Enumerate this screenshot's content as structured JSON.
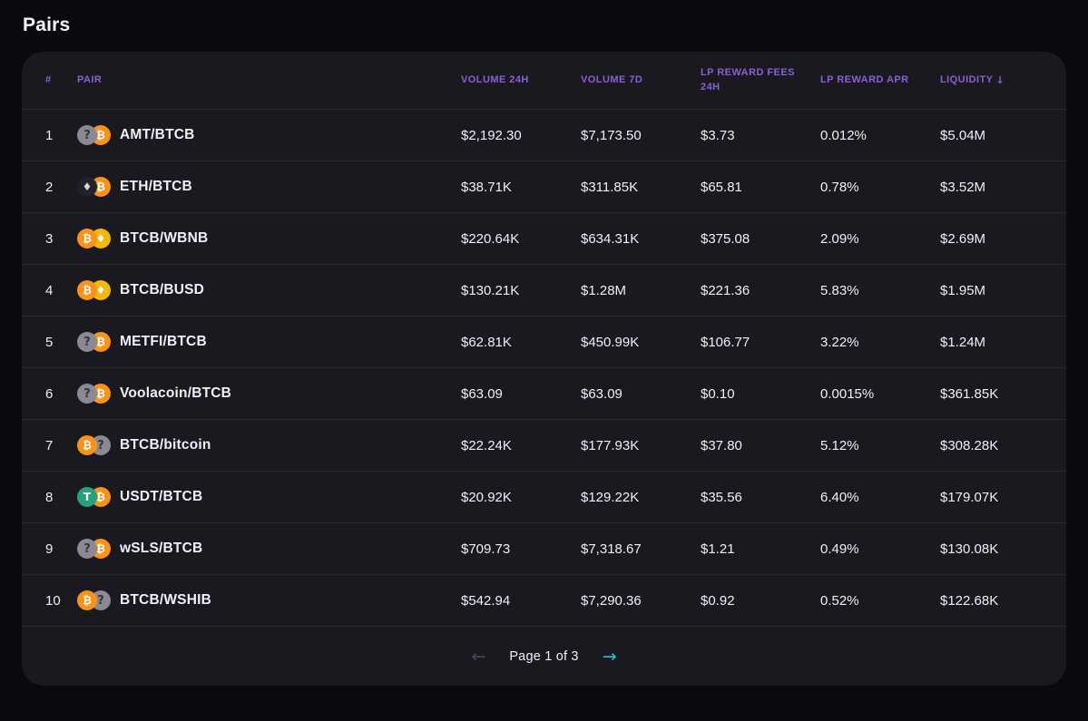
{
  "page": {
    "title": "Pairs"
  },
  "colors": {
    "background": "#0a090d",
    "card": "#1a191f",
    "header_text": "#8a5fd6",
    "row_text": "#f2eef8",
    "next_arrow": "#1fc7d4",
    "bitcoin": "#f7931a",
    "bnb": "#f0b90b",
    "usdt": "#26a17b"
  },
  "table": {
    "columns": {
      "rank": "#",
      "pair": "PAIR",
      "volume24h": "VOLUME 24H",
      "volume7d": "VOLUME 7D",
      "fees24h": "LP REWARD FEES 24H",
      "apr": "LP REWARD APR",
      "liquidity": "LIQUIDITY",
      "liquidity_sort_icon": "↓"
    },
    "rows": [
      {
        "rank": "1",
        "pair": "AMT/BTCB",
        "icons": [
          "question-icon",
          "bitcoin-icon"
        ],
        "volume24h": "$2,192.30",
        "volume7d": "$7,173.50",
        "fees24h": "$3.73",
        "apr": "0.012%",
        "liquidity": "$5.04M"
      },
      {
        "rank": "2",
        "pair": "ETH/BTCB",
        "icons": [
          "eth-icon",
          "bitcoin-icon"
        ],
        "volume24h": "$38.71K",
        "volume7d": "$311.85K",
        "fees24h": "$65.81",
        "apr": "0.78%",
        "liquidity": "$3.52M"
      },
      {
        "rank": "3",
        "pair": "BTCB/WBNB",
        "icons": [
          "bitcoin-icon",
          "bnb-icon"
        ],
        "volume24h": "$220.64K",
        "volume7d": "$634.31K",
        "fees24h": "$375.08",
        "apr": "2.09%",
        "liquidity": "$2.69M"
      },
      {
        "rank": "4",
        "pair": "BTCB/BUSD",
        "icons": [
          "bitcoin-icon",
          "busd-icon"
        ],
        "volume24h": "$130.21K",
        "volume7d": "$1.28M",
        "fees24h": "$221.36",
        "apr": "5.83%",
        "liquidity": "$1.95M"
      },
      {
        "rank": "5",
        "pair": "METFI/BTCB",
        "icons": [
          "question-icon",
          "bitcoin-icon"
        ],
        "volume24h": "$62.81K",
        "volume7d": "$450.99K",
        "fees24h": "$106.77",
        "apr": "3.22%",
        "liquidity": "$1.24M"
      },
      {
        "rank": "6",
        "pair": "Voolacoin/BTCB",
        "icons": [
          "question-icon",
          "bitcoin-icon"
        ],
        "volume24h": "$63.09",
        "volume7d": "$63.09",
        "fees24h": "$0.10",
        "apr": "0.0015%",
        "liquidity": "$361.85K"
      },
      {
        "rank": "7",
        "pair": "BTCB/bitcoin",
        "icons": [
          "bitcoin-icon",
          "question-icon"
        ],
        "volume24h": "$22.24K",
        "volume7d": "$177.93K",
        "fees24h": "$37.80",
        "apr": "5.12%",
        "liquidity": "$308.28K"
      },
      {
        "rank": "8",
        "pair": "USDT/BTCB",
        "icons": [
          "usdt-icon",
          "bitcoin-icon"
        ],
        "volume24h": "$20.92K",
        "volume7d": "$129.22K",
        "fees24h": "$35.56",
        "apr": "6.40%",
        "liquidity": "$179.07K"
      },
      {
        "rank": "9",
        "pair": "wSLS/BTCB",
        "icons": [
          "question-icon",
          "bitcoin-icon"
        ],
        "volume24h": "$709.73",
        "volume7d": "$7,318.67",
        "fees24h": "$1.21",
        "apr": "0.49%",
        "liquidity": "$130.08K"
      },
      {
        "rank": "10",
        "pair": "BTCB/WSHIB",
        "icons": [
          "bitcoin-icon",
          "question-icon"
        ],
        "volume24h": "$542.94",
        "volume7d": "$7,290.36",
        "fees24h": "$0.92",
        "apr": "0.52%",
        "liquidity": "$122.68K"
      }
    ]
  },
  "pagination": {
    "label": "Page 1 of 3",
    "prev_icon": "←",
    "next_icon": "→"
  }
}
